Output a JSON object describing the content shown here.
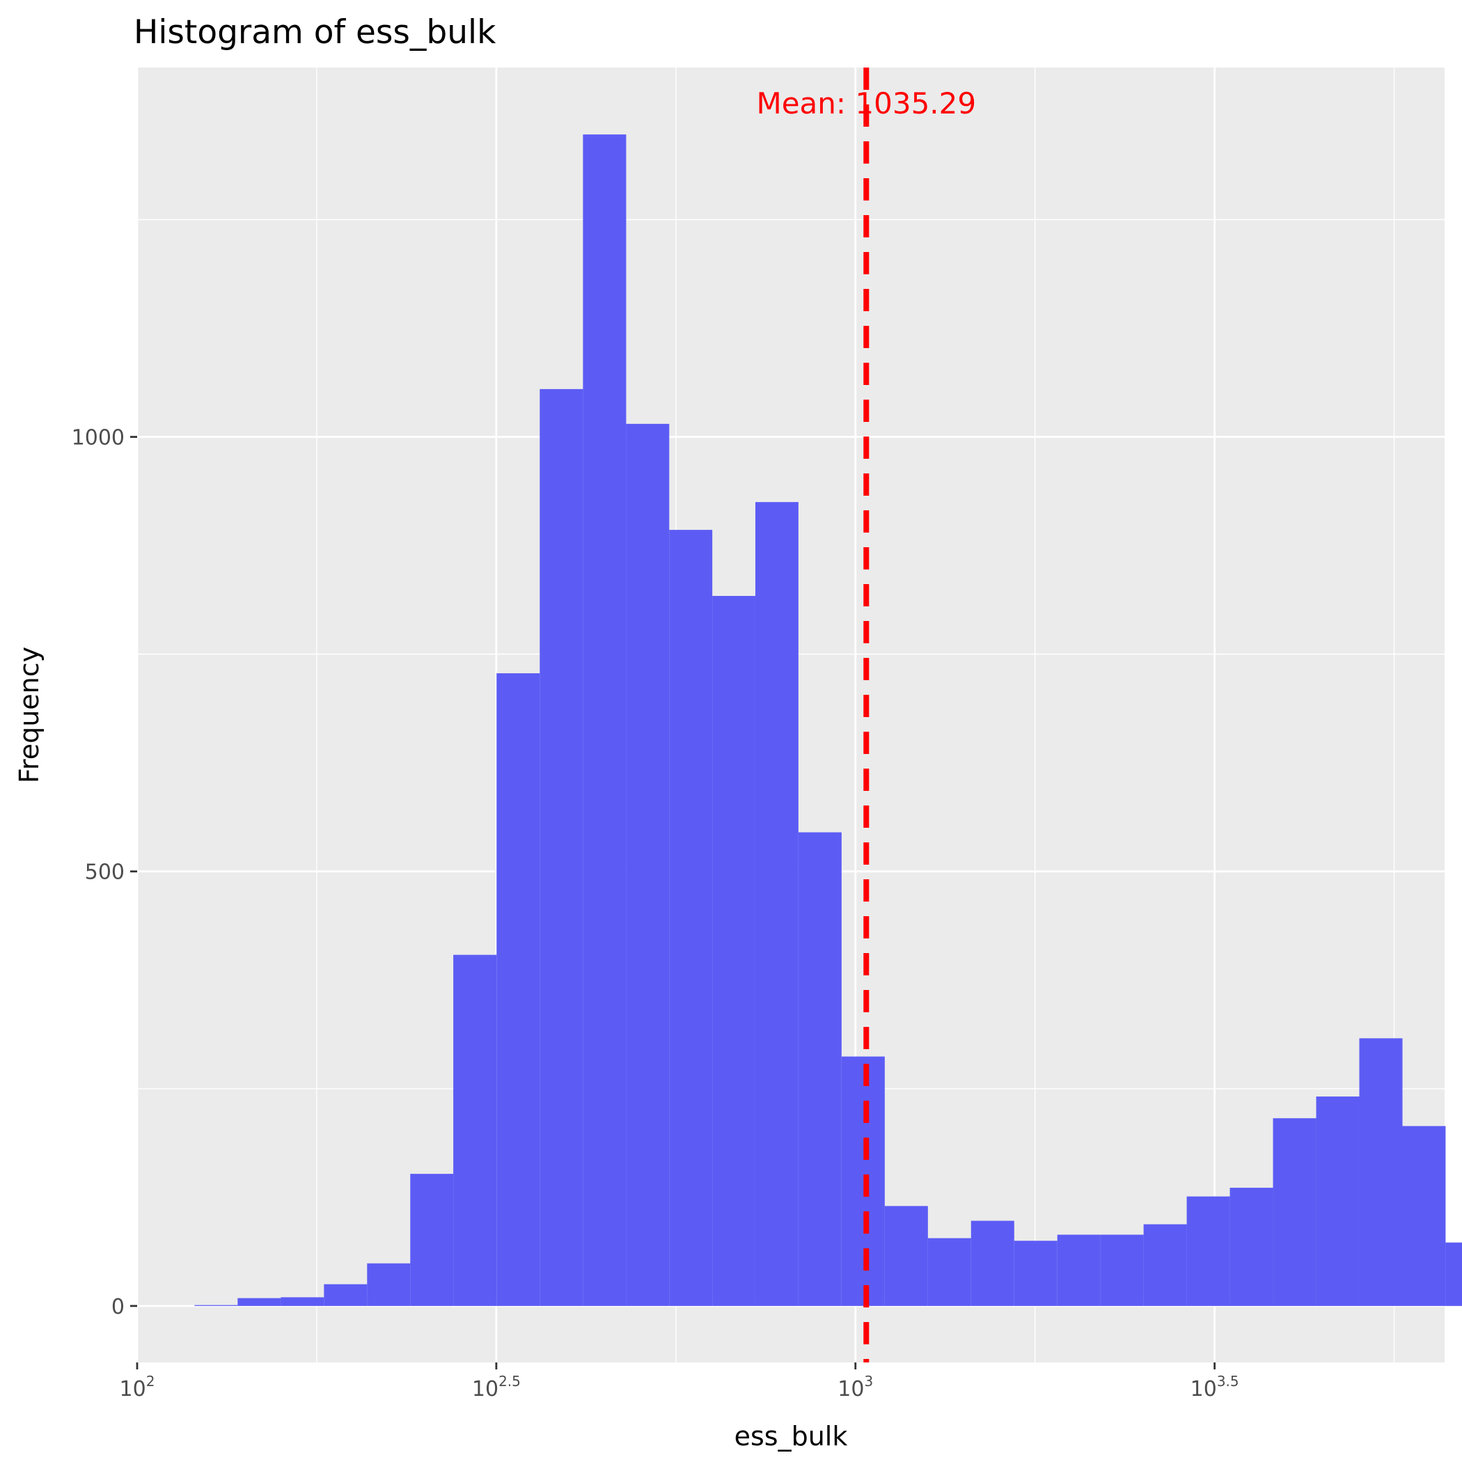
{
  "chart_data": {
    "type": "bar",
    "title": "Histogram of ess_bulk",
    "xlabel": "ess_bulk",
    "ylabel": "Frequency",
    "x_scale": "log10",
    "x_ticks": [
      {
        "base": "10",
        "exp": "2",
        "value": 100
      },
      {
        "base": "10",
        "exp": "2.5",
        "value": 316.23
      },
      {
        "base": "10",
        "exp": "3",
        "value": 1000
      },
      {
        "base": "10",
        "exp": "3.5",
        "value": 3162.28
      }
    ],
    "y_ticks": [
      0,
      500,
      1000
    ],
    "xlim": [
      100,
      6610
    ],
    "ylim": [
      -65,
      1425
    ],
    "bar_color": "#5c5cf5",
    "bins": [
      {
        "x0": 120.2,
        "x1": 138.0,
        "count": 1
      },
      {
        "x0": 138.0,
        "x1": 158.5,
        "count": 9
      },
      {
        "x0": 158.5,
        "x1": 182.0,
        "count": 10
      },
      {
        "x0": 182.0,
        "x1": 209.0,
        "count": 25
      },
      {
        "x0": 209.0,
        "x1": 240.0,
        "count": 49
      },
      {
        "x0": 240.0,
        "x1": 275.5,
        "count": 152
      },
      {
        "x0": 275.5,
        "x1": 316.5,
        "count": 404
      },
      {
        "x0": 316.5,
        "x1": 363.5,
        "count": 728
      },
      {
        "x0": 363.5,
        "x1": 417.5,
        "count": 1055
      },
      {
        "x0": 417.5,
        "x1": 479.5,
        "count": 1348
      },
      {
        "x0": 479.5,
        "x1": 550.5,
        "count": 1015
      },
      {
        "x0": 550.5,
        "x1": 632.0,
        "count": 893
      },
      {
        "x0": 632.0,
        "x1": 725.5,
        "count": 817
      },
      {
        "x0": 725.5,
        "x1": 833.0,
        "count": 925
      },
      {
        "x0": 833.0,
        "x1": 956.5,
        "count": 545
      },
      {
        "x0": 956.5,
        "x1": 1098.5,
        "count": 287
      },
      {
        "x0": 1098.5,
        "x1": 1261.5,
        "count": 115
      },
      {
        "x0": 1261.5,
        "x1": 1448.5,
        "count": 78
      },
      {
        "x0": 1448.5,
        "x1": 1663.5,
        "count": 98
      },
      {
        "x0": 1663.5,
        "x1": 1910.0,
        "count": 75
      },
      {
        "x0": 1910.0,
        "x1": 2193.0,
        "count": 82
      },
      {
        "x0": 2193.0,
        "x1": 2518.5,
        "count": 82
      },
      {
        "x0": 2518.5,
        "x1": 2892.0,
        "count": 94
      },
      {
        "x0": 2892.0,
        "x1": 3321.0,
        "count": 126
      },
      {
        "x0": 3321.0,
        "x1": 3813.5,
        "count": 136
      },
      {
        "x0": 3813.5,
        "x1": 4379.5,
        "count": 216
      },
      {
        "x0": 4379.5,
        "x1": 5029.0,
        "count": 241
      },
      {
        "x0": 5029.0,
        "x1": 5775.0,
        "count": 308
      },
      {
        "x0": 5775.0,
        "x1": 6631.0,
        "count": 207
      },
      {
        "x0": 6631.0,
        "x1": 7614.0,
        "count": 73
      }
    ],
    "mean": {
      "value": 1035.29,
      "label": "Mean: 1035.29",
      "color": "#ff0000",
      "line_style": "dashed"
    },
    "grid": true,
    "panel_background": "#ebebeb",
    "grid_color": "#ffffff"
  }
}
